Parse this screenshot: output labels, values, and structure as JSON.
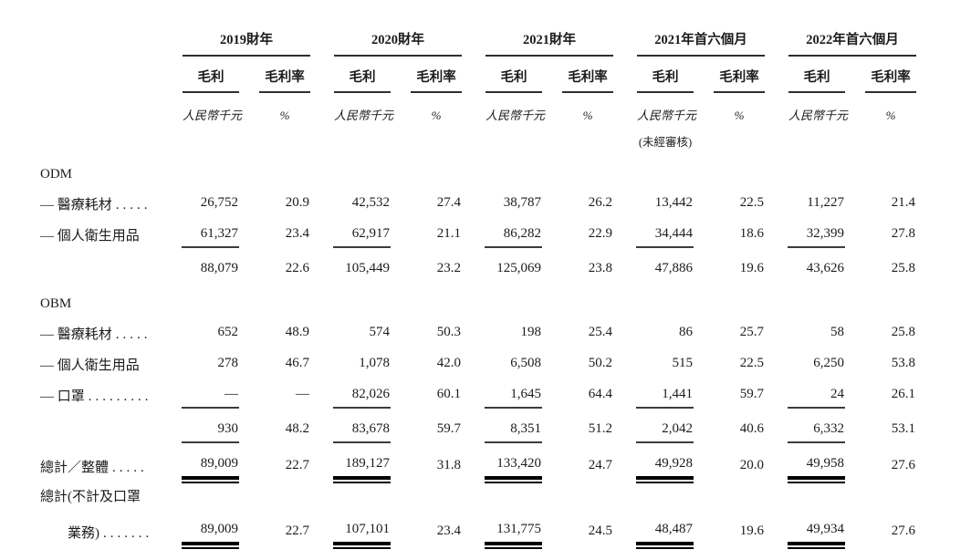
{
  "page": {
    "background_color": "#ffffff",
    "text_color": "#1b1b1b",
    "thin_rule_color": "#3c3c3c",
    "heavy_rule_color": "#000000"
  },
  "table": {
    "groups": [
      {
        "period": "2019財年",
        "profit_header": "毛利",
        "margin_header": "毛利率",
        "profit_unit": "人民幣千元",
        "margin_unit": "%",
        "note": ""
      },
      {
        "period": "2020財年",
        "profit_header": "毛利",
        "margin_header": "毛利率",
        "profit_unit": "人民幣千元",
        "margin_unit": "%",
        "note": ""
      },
      {
        "period": "2021財年",
        "profit_header": "毛利",
        "margin_header": "毛利率",
        "profit_unit": "人民幣千元",
        "margin_unit": "%",
        "note": ""
      },
      {
        "period": "2021年首六個月",
        "profit_header": "毛利",
        "margin_header": "毛利率",
        "profit_unit": "人民幣千元",
        "margin_unit": "%",
        "note": "(未經審核)"
      },
      {
        "period": "2022年首六個月",
        "profit_header": "毛利",
        "margin_header": "毛利率",
        "profit_unit": "人民幣千元",
        "margin_unit": "%",
        "note": ""
      }
    ],
    "rows": [
      {
        "type": "section",
        "label": "ODM",
        "leader": "",
        "rule": "none",
        "values": []
      },
      {
        "type": "data",
        "label": "— 醫療耗材",
        "leader": ".....",
        "rule": "none",
        "values": [
          "26,752",
          "20.9",
          "42,532",
          "27.4",
          "38,787",
          "26.2",
          "13,442",
          "22.5",
          "11,227",
          "21.4"
        ]
      },
      {
        "type": "data",
        "label": "— 個人衛生用品",
        "leader": "",
        "rule": "single",
        "values": [
          "61,327",
          "23.4",
          "62,917",
          "21.1",
          "86,282",
          "22.9",
          "34,444",
          "18.6",
          "32,399",
          "27.8"
        ]
      },
      {
        "type": "subtotal",
        "label": "",
        "leader": "",
        "rule": "none",
        "values": [
          "88,079",
          "22.6",
          "105,449",
          "23.2",
          "125,069",
          "23.8",
          "47,886",
          "19.6",
          "43,626",
          "25.8"
        ]
      },
      {
        "type": "section",
        "label": "OBM",
        "leader": "",
        "rule": "none",
        "values": []
      },
      {
        "type": "data",
        "label": "— 醫療耗材",
        "leader": ".....",
        "rule": "none",
        "values": [
          "652",
          "48.9",
          "574",
          "50.3",
          "198",
          "25.4",
          "86",
          "25.7",
          "58",
          "25.8"
        ]
      },
      {
        "type": "data",
        "label": "— 個人衛生用品",
        "leader": "",
        "rule": "none",
        "values": [
          "278",
          "46.7",
          "1,078",
          "42.0",
          "6,508",
          "50.2",
          "515",
          "22.5",
          "6,250",
          "53.8"
        ]
      },
      {
        "type": "data",
        "label": "— 口罩",
        "leader": ".........",
        "rule": "single",
        "values": [
          "—",
          "—",
          "82,026",
          "60.1",
          "1,645",
          "64.4",
          "1,441",
          "59.7",
          "24",
          "26.1"
        ]
      },
      {
        "type": "subtotal",
        "label": "",
        "leader": "",
        "rule": "single",
        "values": [
          "930",
          "48.2",
          "83,678",
          "59.7",
          "8,351",
          "51.2",
          "2,042",
          "40.6",
          "6,332",
          "53.1"
        ]
      },
      {
        "type": "total",
        "label": "總計／整體",
        "leader": ".....",
        "rule": "double",
        "values": [
          "89,009",
          "22.7",
          "189,127",
          "31.8",
          "133,420",
          "24.7",
          "49,928",
          "20.0",
          "49,958",
          "27.6"
        ]
      },
      {
        "type": "labelonly",
        "label": "總計(不計及口罩",
        "leader": "",
        "rule": "none",
        "values": []
      },
      {
        "type": "total-indent",
        "label": "業務)",
        "leader": ".......",
        "rule": "double",
        "values": [
          "89,009",
          "22.7",
          "107,101",
          "23.4",
          "131,775",
          "24.5",
          "48,487",
          "19.6",
          "49,934",
          "27.6"
        ]
      }
    ]
  }
}
